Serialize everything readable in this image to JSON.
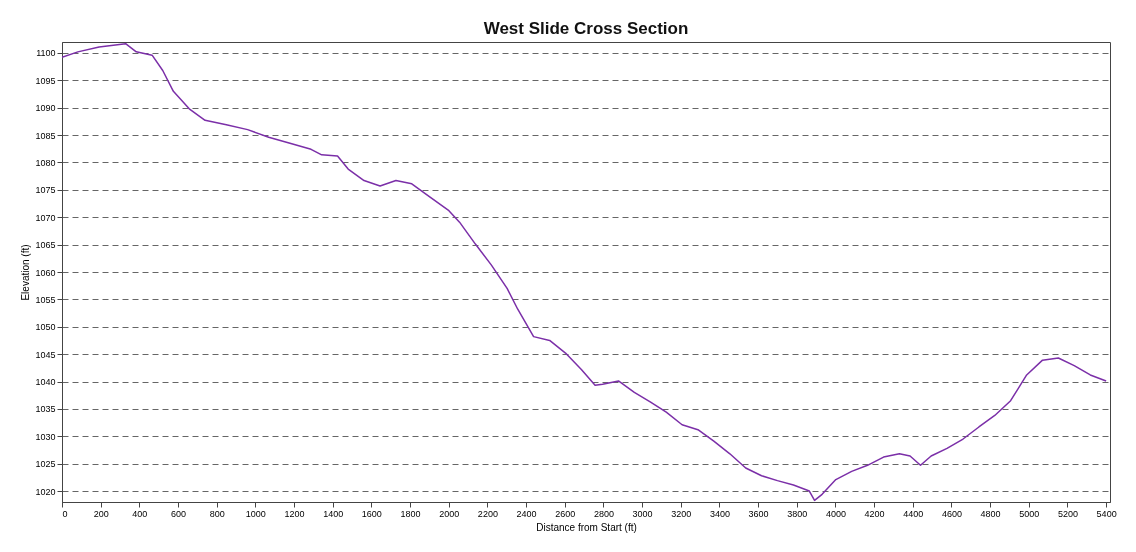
{
  "chart_data": {
    "type": "line",
    "title": "West Slide Cross Section",
    "xlabel": "Distance from Start (ft)",
    "ylabel": "Elevation (ft)",
    "x": [
      0,
      82,
      192,
      329,
      384,
      466,
      521,
      576,
      658,
      740,
      850,
      960,
      1069,
      1179,
      1288,
      1343,
      1425,
      1480,
      1562,
      1645,
      1727,
      1809,
      1891,
      2001,
      2056,
      2138,
      2220,
      2302,
      2357,
      2439,
      2522,
      2604,
      2686,
      2757,
      2796,
      2878,
      2960,
      3042,
      3125,
      3207,
      3289,
      3371,
      3454,
      3536,
      3618,
      3700,
      3783,
      3865,
      3892,
      3931,
      4002,
      4084,
      4166,
      4249,
      4331,
      4386,
      4440,
      4495,
      4577,
      4660,
      4742,
      4824,
      4906,
      4989,
      5071,
      5153,
      5235,
      5318,
      5400
    ],
    "series": [
      {
        "color": "#7b2fa8",
        "values": [
          1099.2,
          1100.2,
          1101.1,
          1101.7,
          1100.2,
          1099.6,
          1096.8,
          1093.0,
          1089.8,
          1087.7,
          1086.9,
          1086.0,
          1084.6,
          1083.5,
          1082.4,
          1081.4,
          1081.2,
          1078.8,
          1076.7,
          1075.7,
          1076.7,
          1076.1,
          1074.0,
          1071.2,
          1069.1,
          1065.1,
          1061.3,
          1057.0,
          1053.2,
          1048.2,
          1047.5,
          1045.2,
          1042.2,
          1039.3,
          1039.5,
          1040.1,
          1038.0,
          1036.3,
          1034.4,
          1032.1,
          1031.2,
          1029.1,
          1026.8,
          1024.2,
          1022.8,
          1021.9,
          1021.1,
          1020.0,
          1018.3,
          1019.4,
          1022.1,
          1023.6,
          1024.7,
          1026.2,
          1026.8,
          1026.4,
          1024.7,
          1026.4,
          1027.8,
          1029.5,
          1031.7,
          1033.8,
          1036.5,
          1041.2,
          1043.9,
          1044.3,
          1042.9,
          1041.2,
          1040.1
        ]
      }
    ],
    "xlim": [
      0,
      5420
    ],
    "xticks": [
      0,
      200,
      400,
      600,
      800,
      1000,
      1200,
      1400,
      1600,
      1800,
      2000,
      2200,
      2400,
      2600,
      2800,
      3000,
      3200,
      3400,
      3600,
      3800,
      4000,
      4200,
      4400,
      4600,
      4800,
      5000,
      5200,
      5400
    ],
    "ylim": [
      1018,
      1102
    ],
    "yticks": [
      1020,
      1025,
      1030,
      1035,
      1040,
      1045,
      1050,
      1055,
      1060,
      1065,
      1070,
      1075,
      1080,
      1085,
      1090,
      1095,
      1100
    ],
    "grid": "y",
    "marker": "none",
    "line_style": "solid"
  }
}
